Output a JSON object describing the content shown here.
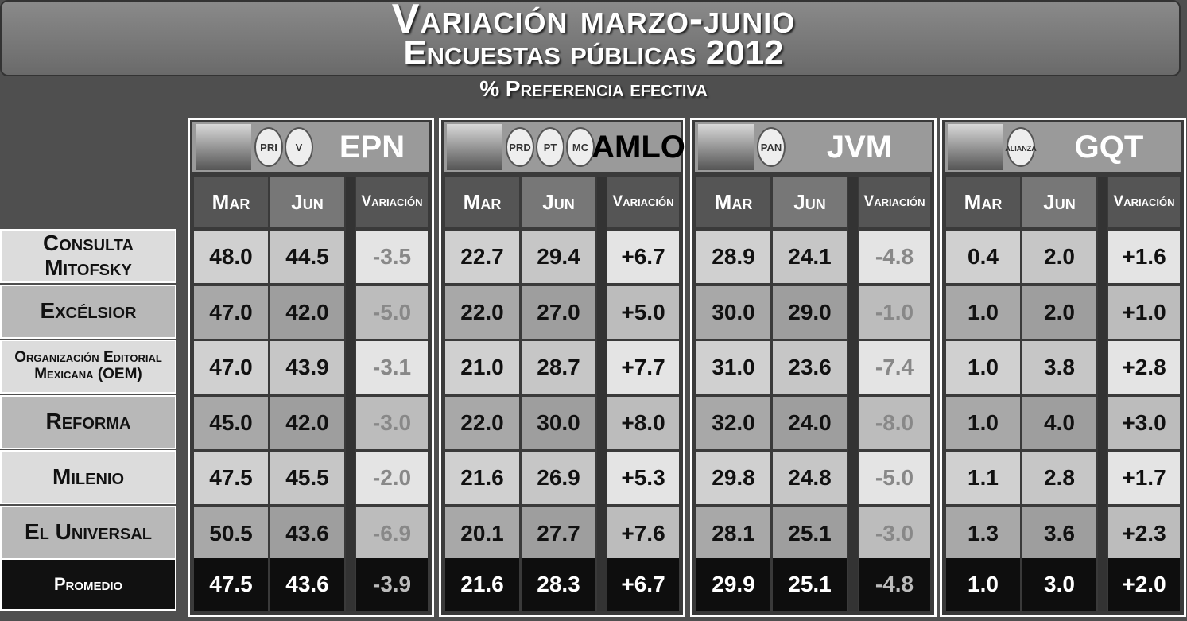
{
  "header": {
    "title": "Variación marzo-junio",
    "subtitle": "Encuestas públicas 2012",
    "caption": "% Preferencia efectiva"
  },
  "columns": [
    "Mar",
    "Jun",
    "Variación"
  ],
  "pollsters": [
    "Consulta Mitofsky",
    "Excélsior",
    "Organización Editorial Mexicana (OEM)",
    "Reforma",
    "Milenio",
    "El Universal"
  ],
  "average_label": "Promedio",
  "candidates": [
    {
      "name": "EPN",
      "logos": [
        "PRI",
        "V"
      ],
      "rows": [
        [
          "48.0",
          "44.5",
          "-3.5"
        ],
        [
          "47.0",
          "42.0",
          "-5.0"
        ],
        [
          "47.0",
          "43.9",
          "-3.1"
        ],
        [
          "45.0",
          "42.0",
          "-3.0"
        ],
        [
          "47.5",
          "45.5",
          "-2.0"
        ],
        [
          "50.5",
          "43.6",
          "-6.9"
        ]
      ],
      "average": [
        "47.5",
        "43.6",
        "-3.9"
      ]
    },
    {
      "name": "AMLO",
      "logos": [
        "PRD",
        "PT",
        "MC"
      ],
      "rows": [
        [
          "22.7",
          "29.4",
          "+6.7"
        ],
        [
          "22.0",
          "27.0",
          "+5.0"
        ],
        [
          "21.0",
          "28.7",
          "+7.7"
        ],
        [
          "22.0",
          "30.0",
          "+8.0"
        ],
        [
          "21.6",
          "26.9",
          "+5.3"
        ],
        [
          "20.1",
          "27.7",
          "+7.6"
        ]
      ],
      "average": [
        "21.6",
        "28.3",
        "+6.7"
      ]
    },
    {
      "name": "JVM",
      "logos": [
        "PAN"
      ],
      "rows": [
        [
          "28.9",
          "24.1",
          "-4.8"
        ],
        [
          "30.0",
          "29.0",
          "-1.0"
        ],
        [
          "31.0",
          "23.6",
          "-7.4"
        ],
        [
          "32.0",
          "24.0",
          "-8.0"
        ],
        [
          "29.8",
          "24.8",
          "-5.0"
        ],
        [
          "28.1",
          "25.1",
          "-3.0"
        ]
      ],
      "average": [
        "29.9",
        "25.1",
        "-4.8"
      ]
    },
    {
      "name": "GQT",
      "logos": [
        "alianza"
      ],
      "rows": [
        [
          "0.4",
          "2.0",
          "+1.6"
        ],
        [
          "1.0",
          "2.0",
          "+1.0"
        ],
        [
          "1.0",
          "3.8",
          "+2.8"
        ],
        [
          "1.0",
          "4.0",
          "+3.0"
        ],
        [
          "1.1",
          "2.8",
          "+1.7"
        ],
        [
          "1.3",
          "3.6",
          "+2.3"
        ]
      ],
      "average": [
        "1.0",
        "3.0",
        "+2.0"
      ]
    }
  ]
}
